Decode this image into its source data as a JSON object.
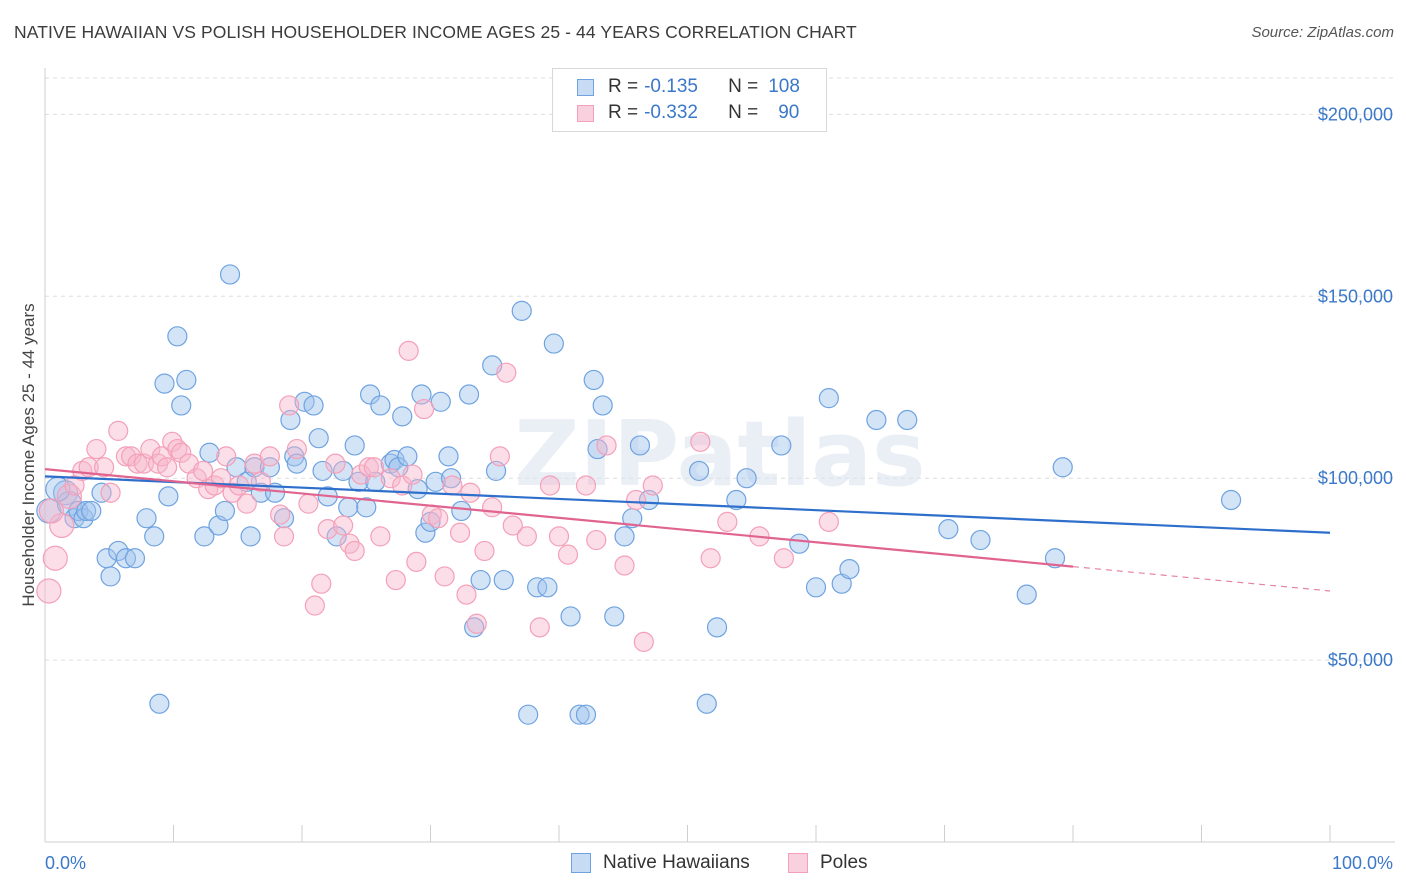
{
  "header": {
    "title": "NATIVE HAWAIIAN VS POLISH HOUSEHOLDER INCOME AGES 25 - 44 YEARS CORRELATION CHART",
    "source": "Source: ZipAtlas.com"
  },
  "watermark": "ZIPatlas",
  "legend_top": [
    {
      "r_label": "R =",
      "r_value": "-0.135",
      "n_label": "N =",
      "n_value": "108",
      "color": "#6fa3e0"
    },
    {
      "r_label": "R =",
      "r_value": "-0.332",
      "n_label": "N =",
      "n_value": "90",
      "color": "#f4a0b8"
    }
  ],
  "legend_bottom": [
    {
      "label": "Native Hawaiians",
      "color": "#6fa3e0"
    },
    {
      "label": "Poles",
      "color": "#f4a0b8"
    }
  ],
  "chart_data": {
    "type": "scatter",
    "title": "NATIVE HAWAIIAN VS POLISH HOUSEHOLDER INCOME AGES 25 - 44 YEARS CORRELATION CHART",
    "xlabel": "",
    "ylabel": "Householder Income Ages 25 - 44 years",
    "xlim": [
      0,
      100
    ],
    "ylim": [
      0,
      210000
    ],
    "x_tick_labels": [
      "0.0%",
      "100.0%"
    ],
    "y_ticks": [
      50000,
      100000,
      150000,
      200000
    ],
    "y_tick_labels": [
      "$50,000",
      "$100,000",
      "$150,000",
      "$200,000"
    ],
    "grid": true,
    "legend_position": "top-center",
    "series": [
      {
        "name": "Native Hawaiians",
        "color": "#6fa3e0",
        "line_color": "#2f6fcc",
        "trend": {
          "x0": 0,
          "y0": 100500,
          "x1": 100,
          "y1": 85000
        },
        "points": [
          [
            0.3,
            91000
          ],
          [
            1.6,
            96000
          ],
          [
            1.9,
            93000
          ],
          [
            2.3,
            89000
          ],
          [
            2.6,
            91000
          ],
          [
            3,
            89000
          ],
          [
            3.2,
            91000
          ],
          [
            4.4,
            96000
          ],
          [
            4.8,
            78000
          ],
          [
            5.1,
            73000
          ],
          [
            5.7,
            80000
          ],
          [
            6.3,
            78000
          ],
          [
            7.0,
            78000
          ],
          [
            7.9,
            89000
          ],
          [
            8.5,
            84000
          ],
          [
            8.9,
            38000
          ],
          [
            9.3,
            126000
          ],
          [
            9.6,
            95000
          ],
          [
            10.3,
            139000
          ],
          [
            10.6,
            120000
          ],
          [
            11.0,
            127000
          ],
          [
            12.4,
            84000
          ],
          [
            12.8,
            107000
          ],
          [
            13.5,
            87000
          ],
          [
            14.0,
            91000
          ],
          [
            14.4,
            156000
          ],
          [
            14.9,
            103000
          ],
          [
            15.7,
            99000
          ],
          [
            16.0,
            84000
          ],
          [
            16.3,
            103000
          ],
          [
            16.8,
            96000
          ],
          [
            17.5,
            103000
          ],
          [
            17.9,
            96000
          ],
          [
            18.6,
            89000
          ],
          [
            19.1,
            116000
          ],
          [
            19.4,
            106000
          ],
          [
            19.6,
            104000
          ],
          [
            20.2,
            121000
          ],
          [
            20.9,
            120000
          ],
          [
            21.3,
            111000
          ],
          [
            21.6,
            102000
          ],
          [
            22.0,
            95000
          ],
          [
            22.7,
            84000
          ],
          [
            23.2,
            102000
          ],
          [
            23.6,
            92000
          ],
          [
            24.1,
            109000
          ],
          [
            24.4,
            99000
          ],
          [
            25.0,
            92000
          ],
          [
            25.3,
            123000
          ],
          [
            25.7,
            99000
          ],
          [
            26.1,
            120000
          ],
          [
            26.9,
            104000
          ],
          [
            27.2,
            105000
          ],
          [
            27.5,
            103000
          ],
          [
            27.8,
            117000
          ],
          [
            28.2,
            106000
          ],
          [
            29.0,
            97000
          ],
          [
            29.3,
            123000
          ],
          [
            29.6,
            85000
          ],
          [
            30.0,
            88000
          ],
          [
            30.4,
            99000
          ],
          [
            30.8,
            121000
          ],
          [
            31.4,
            106000
          ],
          [
            31.6,
            100000
          ],
          [
            32.4,
            91000
          ],
          [
            33.0,
            123000
          ],
          [
            33.4,
            59000
          ],
          [
            33.9,
            72000
          ],
          [
            34.8,
            131000
          ],
          [
            35.1,
            102000
          ],
          [
            35.7,
            72000
          ],
          [
            37.1,
            146000
          ],
          [
            37.6,
            35000
          ],
          [
            38.3,
            70000
          ],
          [
            39.1,
            70000
          ],
          [
            39.6,
            137000
          ],
          [
            40.9,
            62000
          ],
          [
            41.6,
            35000
          ],
          [
            42.1,
            35000
          ],
          [
            42.7,
            127000
          ],
          [
            43.0,
            108000
          ],
          [
            43.4,
            120000
          ],
          [
            44.3,
            62000
          ],
          [
            45.1,
            84000
          ],
          [
            45.7,
            89000
          ],
          [
            46.3,
            109000
          ],
          [
            47.0,
            94000
          ],
          [
            50.9,
            102000
          ],
          [
            51.5,
            38000
          ],
          [
            52.3,
            59000
          ],
          [
            53.8,
            94000
          ],
          [
            54.6,
            100000
          ],
          [
            57.3,
            109000
          ],
          [
            58.7,
            82000
          ],
          [
            60.0,
            70000
          ],
          [
            61.0,
            122000
          ],
          [
            62.0,
            71000
          ],
          [
            62.6,
            75000
          ],
          [
            64.7,
            116000
          ],
          [
            67.1,
            116000
          ],
          [
            70.3,
            86000
          ],
          [
            72.8,
            83000
          ],
          [
            76.4,
            68000
          ],
          [
            78.6,
            78000
          ],
          [
            79.2,
            103000
          ],
          [
            92.3,
            94000
          ],
          [
            1.0,
            97000
          ],
          [
            3.6,
            91000
          ]
        ]
      },
      {
        "name": "Poles",
        "color": "#f4a0b8",
        "line_color": "#e0648f",
        "trend": {
          "x0": 0,
          "y0": 102500,
          "x1": 80,
          "y1": 75700
        },
        "trend_dashed": {
          "x0": 80,
          "y0": 75700,
          "x1": 100,
          "y1": 69000
        },
        "points": [
          [
            0.3,
            69000
          ],
          [
            0.8,
            78000
          ],
          [
            1.3,
            87000
          ],
          [
            1.9,
            95000
          ],
          [
            2.3,
            98000
          ],
          [
            2.9,
            102000
          ],
          [
            3.4,
            103000
          ],
          [
            4.0,
            108000
          ],
          [
            4.6,
            103000
          ],
          [
            5.1,
            96000
          ],
          [
            5.7,
            113000
          ],
          [
            6.3,
            106000
          ],
          [
            6.7,
            106000
          ],
          [
            7.2,
            104000
          ],
          [
            7.7,
            104000
          ],
          [
            8.2,
            108000
          ],
          [
            8.8,
            104000
          ],
          [
            9.1,
            106000
          ],
          [
            9.5,
            103000
          ],
          [
            9.9,
            110000
          ],
          [
            10.3,
            108000
          ],
          [
            10.6,
            107000
          ],
          [
            11.2,
            104000
          ],
          [
            11.8,
            100000
          ],
          [
            12.3,
            102000
          ],
          [
            12.7,
            97000
          ],
          [
            13.2,
            98000
          ],
          [
            13.7,
            100000
          ],
          [
            14.1,
            106000
          ],
          [
            14.6,
            96000
          ],
          [
            15.1,
            98000
          ],
          [
            15.7,
            93000
          ],
          [
            16.3,
            104000
          ],
          [
            16.8,
            99000
          ],
          [
            17.5,
            106000
          ],
          [
            18.3,
            90000
          ],
          [
            18.6,
            84000
          ],
          [
            19.0,
            120000
          ],
          [
            19.6,
            108000
          ],
          [
            20.5,
            93000
          ],
          [
            21.0,
            65000
          ],
          [
            21.5,
            71000
          ],
          [
            22.0,
            86000
          ],
          [
            22.6,
            104000
          ],
          [
            23.2,
            87000
          ],
          [
            23.7,
            82000
          ],
          [
            24.1,
            80000
          ],
          [
            24.6,
            101000
          ],
          [
            25.2,
            103000
          ],
          [
            25.6,
            103000
          ],
          [
            26.1,
            84000
          ],
          [
            26.9,
            100000
          ],
          [
            27.3,
            72000
          ],
          [
            27.8,
            98000
          ],
          [
            28.3,
            135000
          ],
          [
            28.6,
            101000
          ],
          [
            28.9,
            77000
          ],
          [
            29.5,
            119000
          ],
          [
            30.1,
            90000
          ],
          [
            30.6,
            89000
          ],
          [
            31.1,
            73000
          ],
          [
            31.7,
            98000
          ],
          [
            32.3,
            85000
          ],
          [
            32.8,
            68000
          ],
          [
            33.1,
            96000
          ],
          [
            33.6,
            60000
          ],
          [
            34.2,
            80000
          ],
          [
            34.8,
            92000
          ],
          [
            35.4,
            106000
          ],
          [
            35.9,
            129000
          ],
          [
            36.4,
            87000
          ],
          [
            37.5,
            84000
          ],
          [
            38.5,
            59000
          ],
          [
            39.3,
            98000
          ],
          [
            40.0,
            84000
          ],
          [
            40.7,
            79000
          ],
          [
            42.1,
            98000
          ],
          [
            42.9,
            83000
          ],
          [
            43.7,
            109000
          ],
          [
            45.1,
            76000
          ],
          [
            46.0,
            94000
          ],
          [
            46.6,
            55000
          ],
          [
            47.3,
            98000
          ],
          [
            51.0,
            110000
          ],
          [
            51.8,
            78000
          ],
          [
            53.1,
            88000
          ],
          [
            55.6,
            84000
          ],
          [
            57.5,
            78000
          ],
          [
            61.0,
            88000
          ],
          [
            0.5,
            91000
          ]
        ]
      }
    ]
  }
}
